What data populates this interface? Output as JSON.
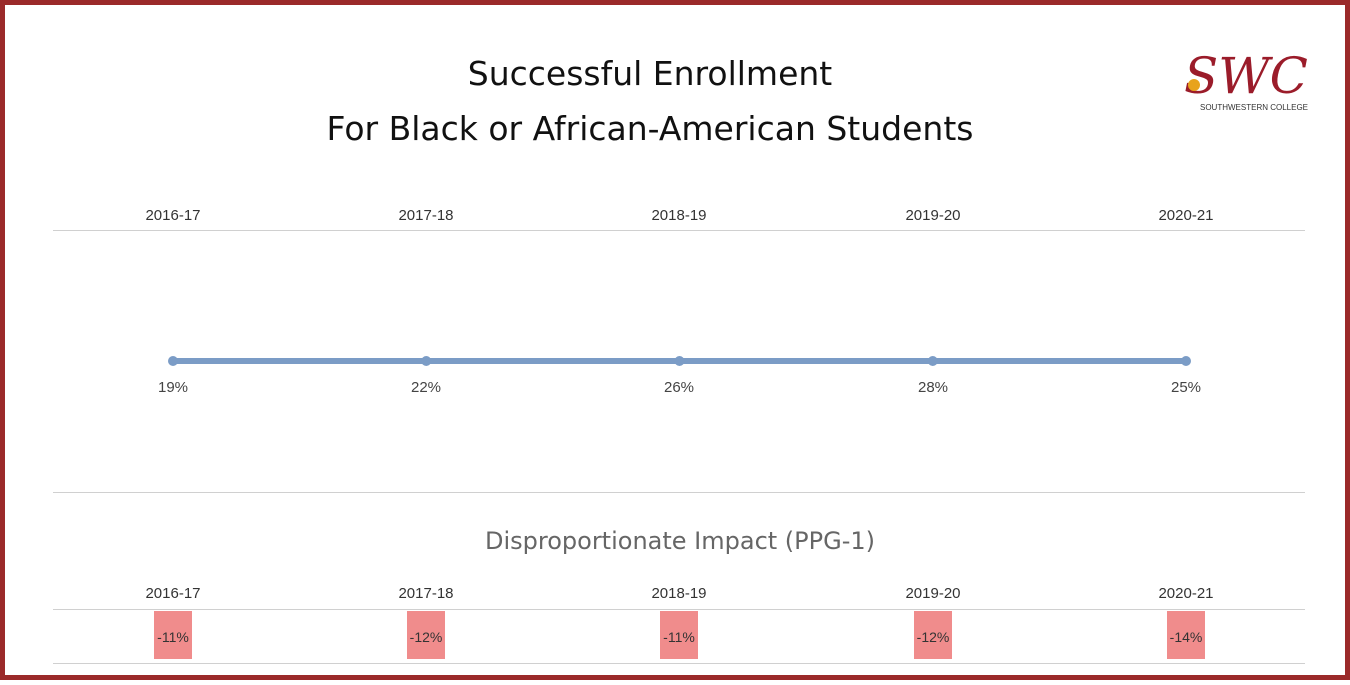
{
  "colors": {
    "frame": "#9b2a2a",
    "line": "#7b9cc6",
    "di_fill": "#f08c8c",
    "logo_text": "#9b1c2a",
    "logo_sun": "#e8a31c"
  },
  "header": {
    "title_line1": "Successful Enrollment",
    "title_line2": "For Black or African-American Students"
  },
  "logo": {
    "mark": "SWC",
    "caption": "SOUTHWESTERN COLLEGE"
  },
  "chart_data": [
    {
      "type": "line",
      "title": "",
      "categories": [
        "2016-17",
        "2017-18",
        "2018-19",
        "2019-20",
        "2020-21"
      ],
      "series": [
        {
          "values": [
            19,
            22,
            26,
            28,
            25
          ],
          "labels": [
            "19%",
            "22%",
            "26%",
            "28%",
            "25%"
          ]
        }
      ],
      "grid": false
    },
    {
      "type": "table",
      "title": "Disproportionate Impact (PPG-1)",
      "categories": [
        "2016-17",
        "2017-18",
        "2018-19",
        "2019-20",
        "2020-21"
      ],
      "values": [
        -11,
        -12,
        -11,
        -12,
        -14
      ],
      "labels": [
        "-11%",
        "-12%",
        "-11%",
        "-12%",
        "-14%"
      ]
    }
  ]
}
